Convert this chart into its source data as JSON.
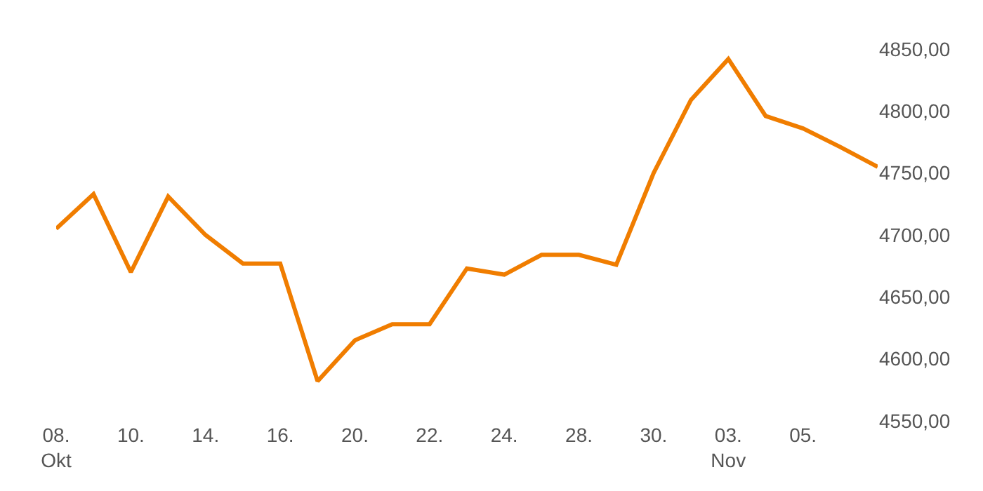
{
  "chart_data": {
    "type": "line",
    "categories": [
      "08.\nOkt",
      null,
      "10.",
      null,
      "14.",
      null,
      "16.",
      null,
      "20.",
      null,
      "22.",
      null,
      "24.",
      null,
      "28.",
      null,
      "30.",
      null,
      "03.\nNov",
      null,
      "05.",
      null,
      null
    ],
    "series": [
      {
        "color": "#f07d00",
        "values": [
          4705,
          4733,
          4670,
          4731,
          4700,
          4677,
          4677,
          4582,
          4615,
          4628,
          4628,
          4673,
          4668,
          4684,
          4684,
          4676,
          4750,
          4809,
          4842,
          4796,
          4786,
          4771,
          4755
        ]
      }
    ],
    "ylim": [
      4550,
      4850
    ],
    "yticks": [
      {
        "value": 4550,
        "label": "4550,00"
      },
      {
        "value": 4600,
        "label": "4600,00"
      },
      {
        "value": 4650,
        "label": "4650,00"
      },
      {
        "value": 4700,
        "label": "4700,00"
      },
      {
        "value": 4750,
        "label": "4750,00"
      },
      {
        "value": 4800,
        "label": "4800,00"
      },
      {
        "value": 4850,
        "label": "4850,00"
      }
    ],
    "marker": "none",
    "line_style": "solid"
  }
}
